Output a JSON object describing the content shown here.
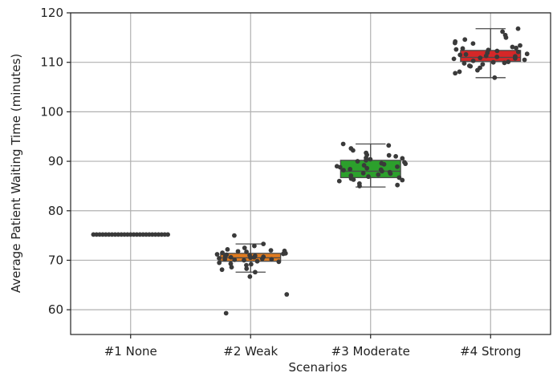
{
  "chart_data": {
    "type": "box",
    "xlabel": "Scenarios",
    "ylabel": "Average Patient Waiting Time (minutes)",
    "ylim": [
      55,
      120
    ],
    "yticks": [
      60,
      70,
      80,
      90,
      100,
      110,
      120
    ],
    "grid": true,
    "categories": [
      "#1 None",
      "#2 Weak",
      "#3 Moderate",
      "#4 Strong"
    ],
    "series": [
      {
        "box": {
          "whisker_low": 75.2,
          "q1": 75.2,
          "median": 75.2,
          "q3": 75.2,
          "whisker_high": 75.2
        },
        "color": "#1f77b4",
        "points": [
          75.2,
          75.2,
          75.2,
          75.2,
          75.2,
          75.2,
          75.2,
          75.2,
          75.2,
          75.2,
          75.2,
          75.2,
          75.2,
          75.2,
          75.2,
          75.2,
          75.2,
          75.2,
          75.2,
          75.2,
          75.2,
          75.2,
          75.2,
          75.2,
          75.2
        ]
      },
      {
        "box": {
          "whisker_low": 67.6,
          "q1": 69.8,
          "median": 70.5,
          "q3": 71.4,
          "whisker_high": 73.3
        },
        "color": "#e07b1f",
        "points": [
          66.7,
          67.6,
          68.1,
          68.6,
          69.0,
          69.2,
          69.5,
          69.7,
          69.8,
          70.0,
          70.1,
          70.2,
          70.3,
          70.4,
          70.5,
          70.6,
          70.7,
          70.8,
          70.9,
          71.0,
          71.1,
          71.2,
          71.3,
          71.4,
          71.5,
          71.7,
          71.9,
          72.2,
          72.5,
          72.9,
          73.3,
          75.0,
          59.3,
          63.1,
          68.3,
          69.3,
          70.6,
          71.8,
          70.2,
          72.0
        ]
      },
      {
        "box": {
          "whisker_low": 84.8,
          "q1": 86.7,
          "median": 88.0,
          "q3": 90.2,
          "whisker_high": 93.5
        },
        "color": "#2ca02c",
        "points": [
          85.0,
          85.5,
          86.0,
          86.2,
          86.5,
          86.7,
          86.9,
          87.1,
          87.3,
          87.6,
          87.8,
          88.0,
          88.2,
          88.4,
          88.6,
          88.8,
          89.0,
          89.2,
          89.4,
          89.6,
          89.8,
          90.0,
          90.2,
          90.4,
          90.7,
          91.0,
          91.3,
          91.7,
          92.2,
          92.6,
          93.2,
          93.5,
          86.3,
          87.5,
          88.9,
          89.5,
          90.6,
          85.2,
          91.2,
          88.3
        ]
      },
      {
        "box": {
          "whisker_low": 106.9,
          "q1": 110.2,
          "median": 111.0,
          "q3": 112.4,
          "whisker_high": 116.8
        },
        "color": "#d62728",
        "points": [
          106.9,
          107.8,
          108.4,
          108.9,
          109.3,
          109.6,
          109.9,
          110.1,
          110.3,
          110.5,
          110.7,
          110.9,
          111.1,
          111.3,
          111.5,
          111.7,
          111.9,
          112.1,
          112.3,
          112.5,
          112.8,
          113.1,
          113.4,
          113.8,
          114.2,
          114.6,
          115.0,
          115.5,
          116.2,
          116.8,
          109.2,
          110.8,
          111.6,
          112.6,
          108.1,
          113.9,
          110.0,
          111.2,
          112.9,
          109.8
        ]
      }
    ]
  }
}
